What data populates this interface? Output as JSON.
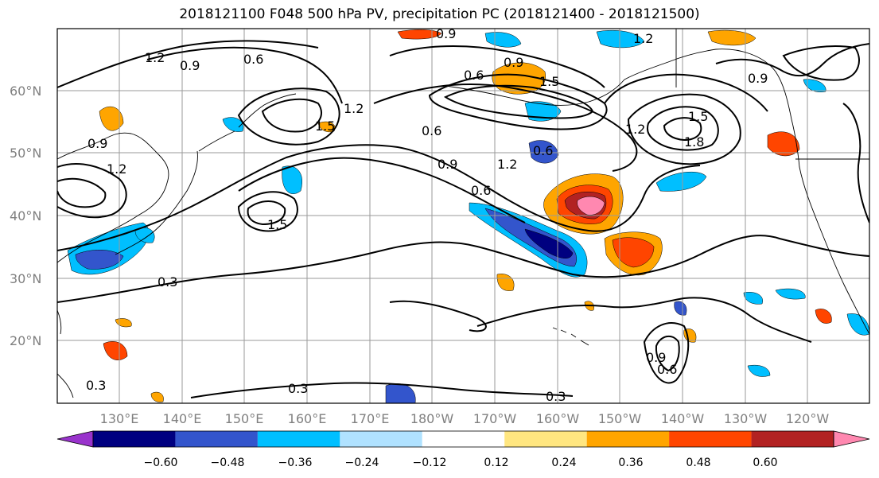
{
  "title": "2018121100 F048 500 hPa PV, precipitation PC (2018121400 - 2018121500)",
  "lat_labels": [
    "60°N",
    "50°N",
    "40°N",
    "30°N",
    "20°N"
  ],
  "lon_labels": [
    "130°E",
    "140°E",
    "150°E",
    "160°E",
    "170°E",
    "180°W",
    "170°W",
    "160°W",
    "150°W",
    "140°W",
    "130°W",
    "120°W"
  ],
  "colorbar": {
    "colors": [
      "#9933cc",
      "#000080",
      "#3355cc",
      "#00bfff",
      "#b0e2ff",
      "#ffffff",
      "#ffe680",
      "#ffa500",
      "#ff4500",
      "#b22222",
      "#ff88b0"
    ],
    "tick_labels": [
      "−0.60",
      "−0.48",
      "−0.36",
      "−0.24",
      "−0.12",
      "0.12",
      "0.24",
      "0.36",
      "0.48",
      "0.60"
    ]
  },
  "contour_labels": [
    "1.2",
    "0.9",
    "0.6",
    "0.9",
    "0.6",
    "1.2",
    "0.9",
    "1.5",
    "0.9",
    "0.6",
    "1.2",
    "1.5",
    "1.2",
    "0.9",
    "0.6",
    "1.2",
    "0.6",
    "1.5",
    "1.8",
    "1.2",
    "0.9",
    "1.5",
    "0.3",
    "0.3",
    "0.3",
    "0.9",
    "0.6",
    "0.3"
  ]
}
